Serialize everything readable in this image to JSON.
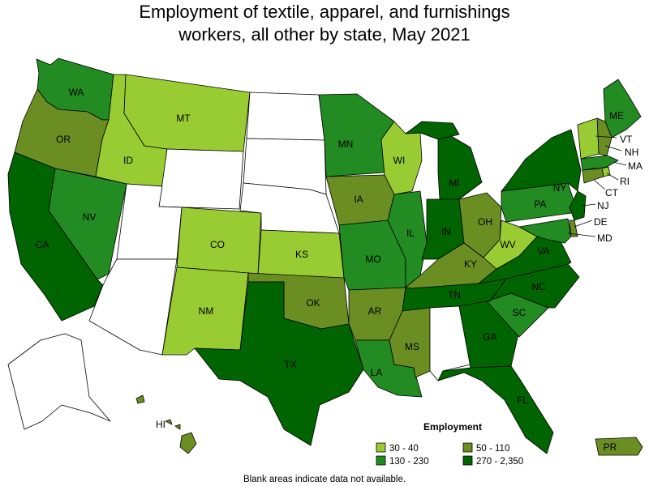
{
  "title": {
    "line1": "Employment of textile, apparel, and furnishings",
    "line2": "workers, all other by state, May 2021"
  },
  "colors": {
    "no_data": "#ffffff",
    "30-40": "#99cc33",
    "50-110": "#6b8e23",
    "130-230": "#228b22",
    "270-2350": "#006400"
  },
  "legend": {
    "title": "Employment",
    "items": [
      {
        "key": "30-40",
        "label": "30 - 40"
      },
      {
        "key": "50-110",
        "label": "50 - 110"
      },
      {
        "key": "130-230",
        "label": "130 - 230"
      },
      {
        "key": "270-2350",
        "label": "270 - 2,350"
      }
    ]
  },
  "footnote": "Blank areas indicate data not available.",
  "states": {
    "WA": "130-230",
    "OR": "50-110",
    "CA": "270-2350",
    "NV": "130-230",
    "ID": "30-40",
    "MT": "30-40",
    "WY": null,
    "UT": null,
    "AZ": null,
    "CO": "30-40",
    "NM": "30-40",
    "ND": null,
    "SD": null,
    "NE": null,
    "KS": "30-40",
    "OK": "50-110",
    "TX": "270-2350",
    "MN": "130-230",
    "IA": "50-110",
    "MO": "130-230",
    "AR": "50-110",
    "LA": "130-230",
    "WI": "30-40",
    "IL": "130-230",
    "MI": "270-2350",
    "IN": "270-2350",
    "OH": "50-110",
    "KY": "50-110",
    "TN": "270-2350",
    "MS": "50-110",
    "AL": null,
    "GA": "270-2350",
    "FL": "270-2350",
    "SC": "130-230",
    "NC": "270-2350",
    "VA": "270-2350",
    "WV": "30-40",
    "PA": "130-230",
    "NY": "270-2350",
    "ME": "130-230",
    "NH": "50-110",
    "VT": "30-40",
    "MA": "130-230",
    "RI": "30-40",
    "CT": "50-110",
    "NJ": "270-2350",
    "DE": "50-110",
    "MD": "130-230",
    "AK": null,
    "HI": "50-110",
    "PR": "50-110"
  },
  "labels": {
    "WA": "WA",
    "OR": "OR",
    "CA": "CA",
    "NV": "NV",
    "ID": "ID",
    "MT": "MT",
    "CO": "CO",
    "NM": "NM",
    "KS": "KS",
    "OK": "OK",
    "TX": "TX",
    "MN": "MN",
    "IA": "IA",
    "MO": "MO",
    "AR": "AR",
    "LA": "LA",
    "WI": "WI",
    "IL": "IL",
    "MI": "MI",
    "IN": "IN",
    "OH": "OH",
    "KY": "KY",
    "TN": "TN",
    "MS": "MS",
    "GA": "GA",
    "FL": "FL",
    "SC": "SC",
    "NC": "NC",
    "VA": "VA",
    "WV": "WV",
    "PA": "PA",
    "NY": "NY",
    "ME": "ME",
    "NH": "NH",
    "VT": "VT",
    "MA": "MA",
    "RI": "RI",
    "CT": "CT",
    "NJ": "NJ",
    "DE": "DE",
    "MD": "MD",
    "HI": "HI",
    "PR": "PR"
  }
}
